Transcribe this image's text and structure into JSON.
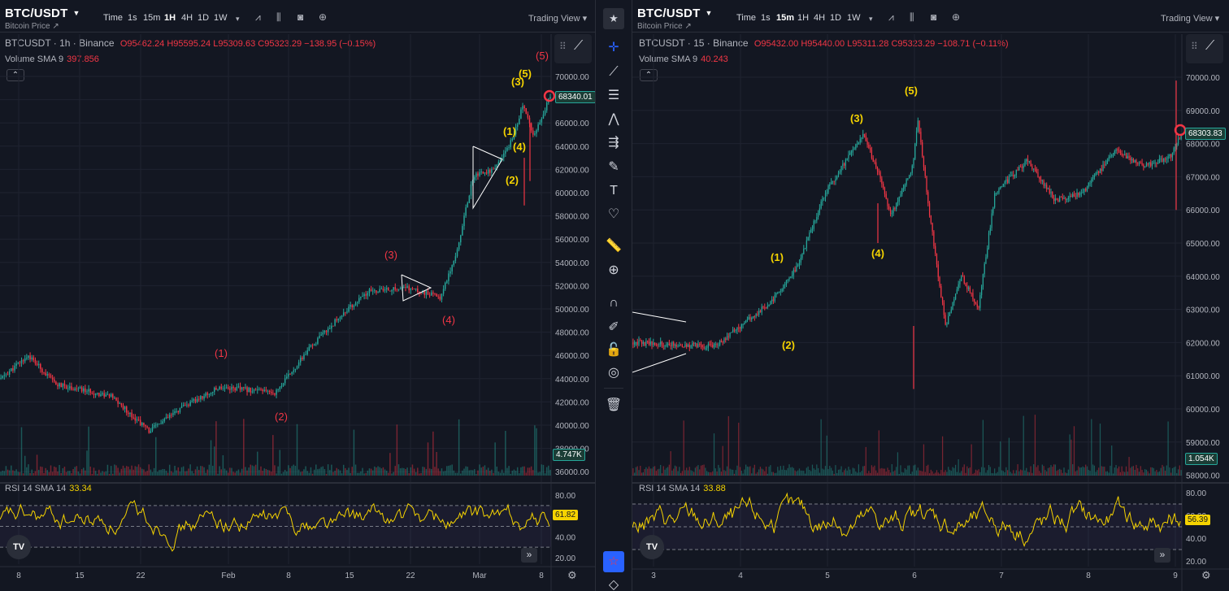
{
  "left": {
    "symbol": "BTC/USDT",
    "subtitle": "Bitcoin Price ↗",
    "timeframes": [
      {
        "label": "Time",
        "active": false
      },
      {
        "label": "1s",
        "active": false
      },
      {
        "label": "15m",
        "active": false
      },
      {
        "label": "1H",
        "active": true
      },
      {
        "label": "4H",
        "active": false
      },
      {
        "label": "1D",
        "active": false
      },
      {
        "label": "1W",
        "active": false
      }
    ],
    "tv_link": "Trading View ▾",
    "legend_prefix": "BTCUSDT · 1h · Binance",
    "ohlc": "O95462.24 H95595.24 L95309.63 C95323.29 −138.95 (−0.15%)",
    "volume_label": "Volume SMA 9",
    "volume_value": "397.856",
    "rsi_label": "RSI 14 SMA 14",
    "rsi_value": "33.34",
    "price_badge": "68340.01",
    "volume_badge": "4.747K",
    "rsi_badge": "61.82",
    "price_ticks": [
      "70000.00",
      "68000.00",
      "66000.00",
      "64000.00",
      "62000.00",
      "60000.00",
      "58000.00",
      "56000.00",
      "54000.00",
      "52000.00",
      "50000.00",
      "48000.00",
      "46000.00",
      "44000.00",
      "42000.00",
      "40000.00",
      "38000.00",
      "36000.00"
    ],
    "rsi_ticks": [
      "80.00",
      "60.00",
      "40.00",
      "20.00"
    ],
    "time_ticks": [
      "8",
      "15",
      "22",
      "Feb",
      "8",
      "15",
      "22",
      "Mar",
      "8"
    ],
    "waves_red": [
      "(1)",
      "(2)",
      "(3)",
      "(4)",
      "(5)"
    ],
    "waves_yellow": [
      "(1)",
      "(2)",
      "(3)",
      "(4)",
      "(5)"
    ]
  },
  "right": {
    "symbol": "BTC/USDT",
    "subtitle": "Bitcoin Price ↗",
    "timeframes": [
      {
        "label": "Time",
        "active": false
      },
      {
        "label": "1s",
        "active": false
      },
      {
        "label": "15m",
        "active": true
      },
      {
        "label": "1H",
        "active": false
      },
      {
        "label": "4H",
        "active": false
      },
      {
        "label": "1D",
        "active": false
      },
      {
        "label": "1W",
        "active": false
      }
    ],
    "tv_link": "Trading View ▾",
    "legend_prefix": "BTCUSDT · 15 · Binance",
    "ohlc": "O95432.00 H95440.00 L95311.28 C95323.29 −108.71 (−0.11%)",
    "volume_label": "Volume SMA 9",
    "volume_value": "40.243",
    "rsi_label": "RSI 14 SMA 14",
    "rsi_value": "33.88",
    "price_badge": "68303.83",
    "volume_badge": "1.054K",
    "rsi_badge": "56.39",
    "price_ticks": [
      "70000.00",
      "69000.00",
      "68000.00",
      "67000.00",
      "66000.00",
      "65000.00",
      "64000.00",
      "63000.00",
      "62000.00",
      "61000.00",
      "60000.00",
      "59000.00",
      "58000.00"
    ],
    "rsi_ticks": [
      "80.00",
      "60.00",
      "40.00",
      "20.00"
    ],
    "time_ticks": [
      "3",
      "4",
      "5",
      "6",
      "7",
      "8",
      "9"
    ],
    "waves_yellow": [
      "(1)",
      "(2)",
      "(3)",
      "(4)",
      "(5)"
    ]
  },
  "toolbar": {
    "tools": [
      {
        "name": "favorites-icon",
        "glyph": "★"
      },
      {
        "name": "crosshair-icon",
        "glyph": "✛"
      },
      {
        "name": "trend-line-icon",
        "glyph": "⟋"
      },
      {
        "name": "horizontal-lines-icon",
        "glyph": "☰"
      },
      {
        "name": "pattern-icon",
        "glyph": "⋀"
      },
      {
        "name": "prediction-icon",
        "glyph": "⇶"
      },
      {
        "name": "brush-icon",
        "glyph": "✎"
      },
      {
        "name": "text-icon",
        "glyph": "T"
      },
      {
        "name": "heart-icon",
        "glyph": "♡"
      },
      {
        "name": "ruler-icon",
        "glyph": "📏"
      },
      {
        "name": "zoom-icon",
        "glyph": "⊕"
      },
      {
        "name": "magnet-icon",
        "glyph": "∩"
      },
      {
        "name": "lock-drawing-icon",
        "glyph": "✐"
      },
      {
        "name": "lock-icon",
        "glyph": "🔓"
      },
      {
        "name": "eye-icon",
        "glyph": "◎"
      },
      {
        "name": "trash-icon",
        "glyph": "🗑"
      },
      {
        "name": "favorite-star-icon",
        "glyph": "☆"
      },
      {
        "name": "layers-icon",
        "glyph": "◇"
      }
    ]
  },
  "colors": {
    "bg": "#131722",
    "up": "#26a69a",
    "down": "#f23645",
    "wave_red": "#f23645",
    "wave_yellow": "#f5d300",
    "rsi_line": "#f5d300"
  }
}
